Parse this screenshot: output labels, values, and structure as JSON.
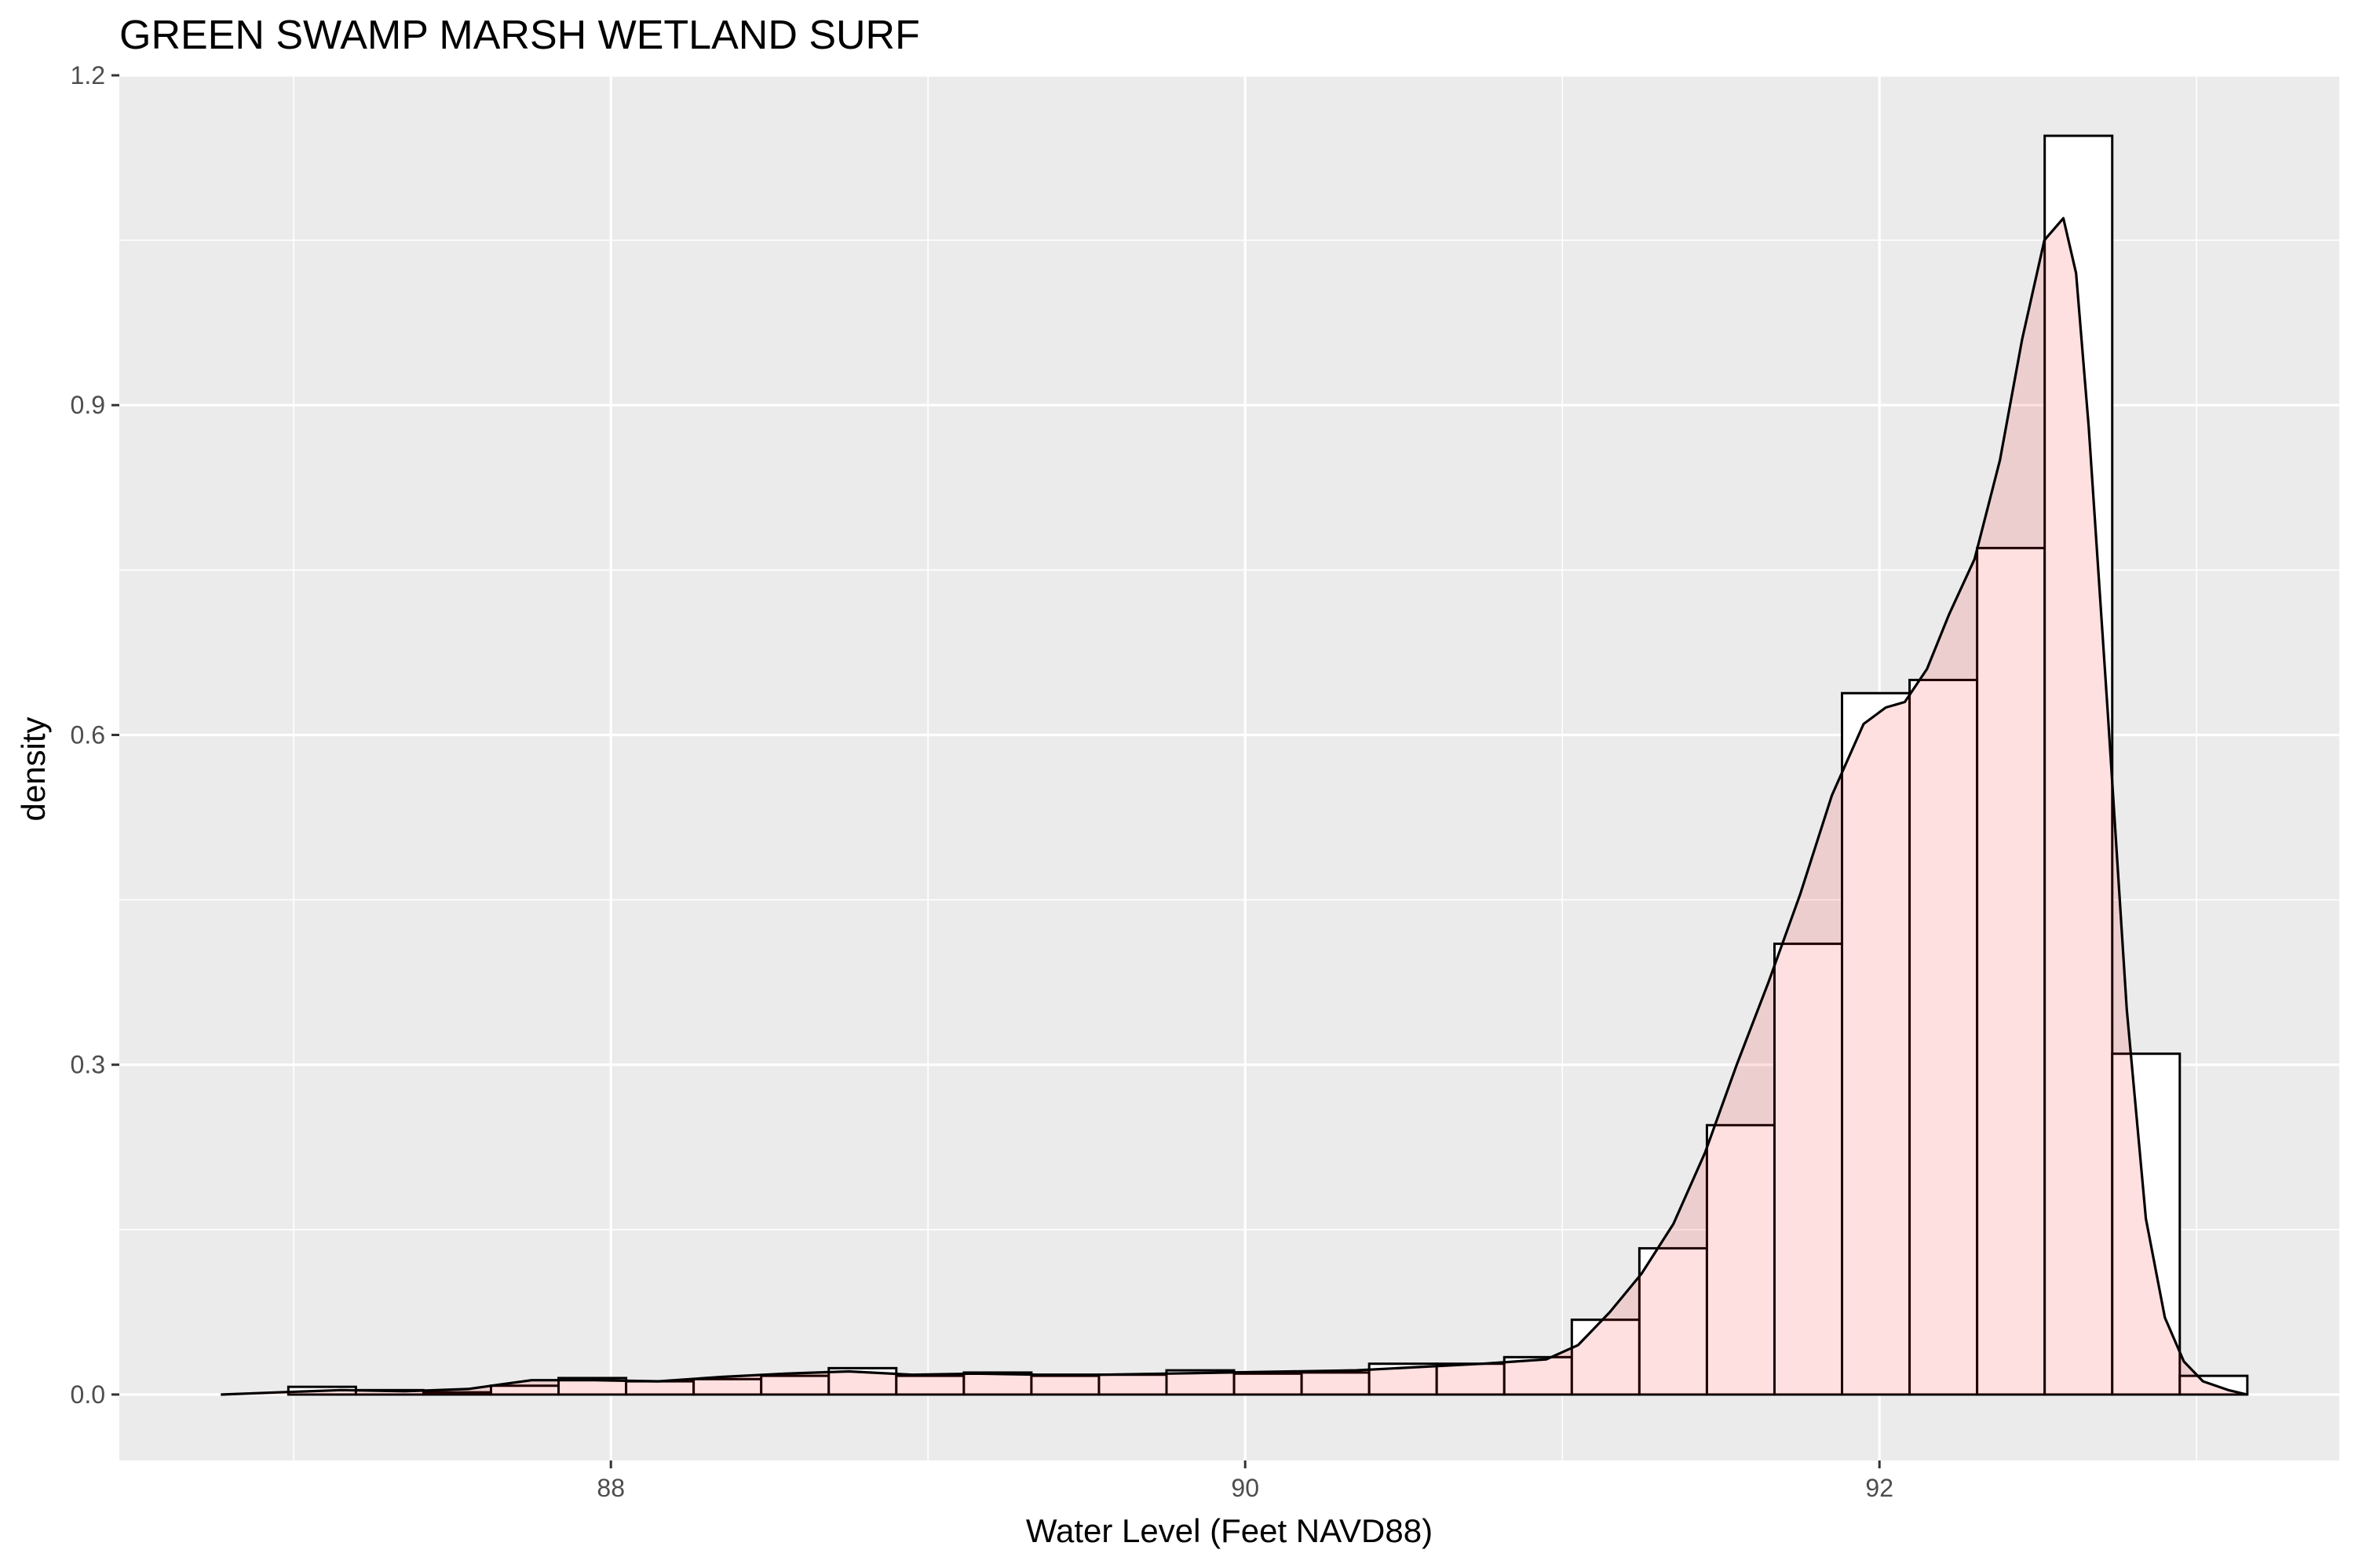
{
  "chart_data": {
    "type": "histogram",
    "title": "GREEN SWAMP MARSH WETLAND SURF",
    "xlabel": "Water Level (Feet NAVD88)",
    "ylabel": "density",
    "xlim": [
      86.45,
      93.45
    ],
    "ylim": [
      -0.06,
      1.2
    ],
    "x_ticks": [
      88,
      90,
      92
    ],
    "x_tick_labels": [
      "88",
      "90",
      "92"
    ],
    "y_ticks": [
      0.0,
      0.3,
      0.6,
      0.9,
      1.2
    ],
    "y_tick_labels": [
      "0.0",
      "0.3",
      "0.6",
      "0.9",
      "1.2"
    ],
    "grid": true,
    "bin_width": 0.213,
    "bins_x_start": [
      86.77,
      86.983,
      87.196,
      87.409,
      87.622,
      87.835,
      88.048,
      88.261,
      88.474,
      88.687,
      88.9,
      89.113,
      89.326,
      89.539,
      89.752,
      89.965,
      90.178,
      90.391,
      90.604,
      90.817,
      91.03,
      91.243,
      91.456,
      91.669,
      91.882,
      92.095,
      92.308,
      92.521,
      92.734,
      92.947
    ],
    "density": [
      0.0,
      0.007,
      0.004,
      0.002,
      0.008,
      0.015,
      0.012,
      0.014,
      0.017,
      0.024,
      0.017,
      0.02,
      0.017,
      0.018,
      0.022,
      0.019,
      0.02,
      0.028,
      0.028,
      0.034,
      0.068,
      0.133,
      0.245,
      0.41,
      0.638,
      0.65,
      0.77,
      1.145,
      0.31,
      0.017
    ],
    "kde": {
      "x": [
        86.77,
        86.95,
        87.15,
        87.35,
        87.55,
        87.75,
        87.95,
        88.15,
        88.35,
        88.55,
        88.75,
        88.95,
        89.15,
        89.35,
        89.55,
        89.75,
        89.95,
        90.15,
        90.35,
        90.55,
        90.75,
        90.95,
        91.05,
        91.15,
        91.25,
        91.35,
        91.45,
        91.55,
        91.65,
        91.75,
        91.85,
        91.95,
        92.02,
        92.08,
        92.15,
        92.22,
        92.3,
        92.38,
        92.45,
        92.52,
        92.58,
        92.62,
        92.66,
        92.72,
        92.78,
        92.84,
        92.9,
        92.96,
        93.02,
        93.1,
        93.16
      ],
      "density": [
        0.0,
        0.002,
        0.004,
        0.003,
        0.005,
        0.013,
        0.013,
        0.012,
        0.016,
        0.019,
        0.021,
        0.018,
        0.019,
        0.018,
        0.018,
        0.019,
        0.02,
        0.021,
        0.022,
        0.025,
        0.028,
        0.032,
        0.045,
        0.075,
        0.11,
        0.155,
        0.22,
        0.3,
        0.375,
        0.455,
        0.545,
        0.61,
        0.625,
        0.63,
        0.66,
        0.71,
        0.76,
        0.85,
        0.96,
        1.05,
        1.07,
        1.02,
        0.88,
        0.62,
        0.35,
        0.16,
        0.07,
        0.03,
        0.012,
        0.004,
        0.0
      ]
    },
    "colors": {
      "panel_background": "#ebebeb",
      "grid": "#ffffff",
      "bar_fill": "#ffffff",
      "bar_stroke": "#000000",
      "kde_fill": "#ff0000",
      "kde_fill_opacity": 0.12,
      "kde_stroke": "#000000"
    }
  }
}
